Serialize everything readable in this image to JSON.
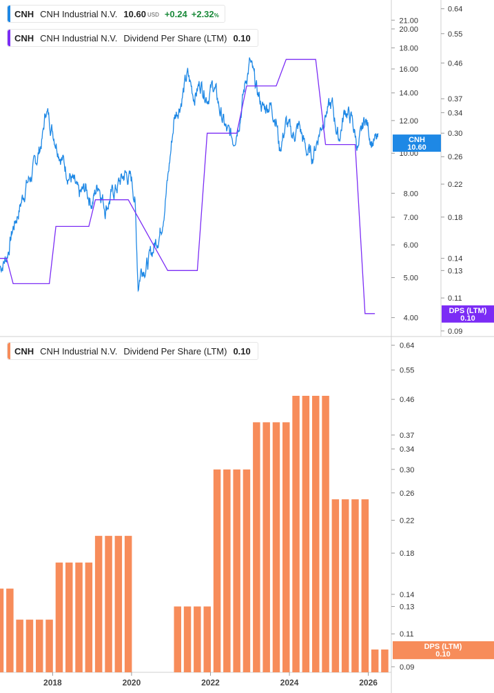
{
  "header": {
    "price_legend": {
      "ticker": "CNH",
      "company": "CNH Industrial N.V.",
      "price": "10.60",
      "currency": "USD",
      "change": "+0.24",
      "change_pct": "+2.32",
      "pct_sign": "%",
      "color": "#1e88e5"
    },
    "dps_legend": {
      "ticker": "CNH",
      "company": "CNH Industrial N.V.",
      "metric": "Dividend Per Share (LTM)",
      "value": "0.10",
      "color": "#7b2cf5"
    },
    "bar_legend": {
      "ticker": "CNH",
      "company": "CNH Industrial N.V.",
      "metric": "Dividend Per Share (LTM)",
      "value": "0.10",
      "color": "#f78c5a"
    }
  },
  "badges": {
    "price": {
      "label": "CNH",
      "value": "10.60",
      "color": "#1e88e5"
    },
    "dps": {
      "label": "DPS (LTM)",
      "value": "0.10",
      "color": "#7b2cf5"
    },
    "bar_dps": {
      "label": "DPS (LTM)",
      "value": "0.10",
      "color": "#f78c5a"
    }
  },
  "chart_data": [
    {
      "type": "line",
      "scale": "log",
      "grid": false,
      "x_range": [
        "2016-09",
        "2026-08"
      ],
      "x_ticks": [
        "2018",
        "2020",
        "2022",
        "2024",
        "2026"
      ],
      "series": [
        {
          "name": "CNH Industrial N.V.",
          "axis": "left",
          "color": "#1e88e5",
          "ylim": [
            3.6,
            23.5
          ],
          "y_ticks": [
            "4.00",
            "5.00",
            "6.00",
            "7.00",
            "8.00",
            "10.00",
            "12.00",
            "14.00",
            "16.00",
            "18.00",
            "20.00",
            "21.00"
          ],
          "points": [
            [
              "2016-09",
              5.3
            ],
            [
              "2016-11",
              5.6
            ],
            [
              "2017-01",
              6.6
            ],
            [
              "2017-03",
              7.4
            ],
            [
              "2017-05",
              8.4
            ],
            [
              "2017-07",
              9.0
            ],
            [
              "2017-09",
              10.2
            ],
            [
              "2017-10",
              11.0
            ],
            [
              "2017-11",
              12.8
            ],
            [
              "2018-01",
              11.4
            ],
            [
              "2018-03",
              10.2
            ],
            [
              "2018-05",
              9.2
            ],
            [
              "2018-07",
              8.6
            ],
            [
              "2018-09",
              7.8
            ],
            [
              "2018-11",
              8.2
            ],
            [
              "2019-01",
              7.6
            ],
            [
              "2019-03",
              8.5
            ],
            [
              "2019-05",
              7.4
            ],
            [
              "2019-07",
              7.9
            ],
            [
              "2019-09",
              8.4
            ],
            [
              "2019-11",
              8.9
            ],
            [
              "2020-01",
              8.6
            ],
            [
              "2020-02",
              7.8
            ],
            [
              "2020-03",
              4.8
            ],
            [
              "2020-04",
              5.3
            ],
            [
              "2020-06",
              5.4
            ],
            [
              "2020-08",
              6.0
            ],
            [
              "2020-10",
              6.6
            ],
            [
              "2020-12",
              8.6
            ],
            [
              "2021-02",
              12.2
            ],
            [
              "2021-04",
              13.4
            ],
            [
              "2021-06",
              15.4
            ],
            [
              "2021-08",
              13.8
            ],
            [
              "2021-10",
              14.8
            ],
            [
              "2021-12",
              13.8
            ],
            [
              "2022-02",
              14.6
            ],
            [
              "2022-04",
              12.6
            ],
            [
              "2022-06",
              11.2
            ],
            [
              "2022-08",
              10.8
            ],
            [
              "2022-10",
              12.4
            ],
            [
              "2022-12",
              15.4
            ],
            [
              "2023-01",
              16.6
            ],
            [
              "2023-03",
              14.2
            ],
            [
              "2023-05",
              12.8
            ],
            [
              "2023-07",
              13.2
            ],
            [
              "2023-09",
              12.2
            ],
            [
              "2023-10",
              10.2
            ],
            [
              "2023-12",
              11.8
            ],
            [
              "2024-02",
              11.0
            ],
            [
              "2024-04",
              11.6
            ],
            [
              "2024-06",
              10.2
            ],
            [
              "2024-08",
              9.8
            ],
            [
              "2024-10",
              11.2
            ],
            [
              "2024-12",
              12.6
            ],
            [
              "2025-02",
              13.0
            ],
            [
              "2025-04",
              10.8
            ],
            [
              "2025-06",
              12.8
            ],
            [
              "2025-08",
              12.0
            ],
            [
              "2025-10",
              10.2
            ],
            [
              "2025-12",
              12.2
            ],
            [
              "2026-02",
              10.8
            ],
            [
              "2026-04",
              10.6
            ]
          ]
        },
        {
          "name": "Dividend Per Share (LTM)",
          "axis": "right",
          "color": "#7b2cf5",
          "ylim": [
            0.087,
            0.675
          ],
          "y_ticks": [
            "0.09",
            "0.11",
            "0.13",
            "0.14",
            "0.18",
            "0.22",
            "0.26",
            "0.30",
            "0.34",
            "0.37",
            "0.46",
            "0.55",
            "0.64"
          ],
          "points": [
            [
              "2016-09",
              0.14
            ],
            [
              "2016-11",
              0.14
            ],
            [
              "2017-01",
              0.12
            ],
            [
              "2017-12",
              0.12
            ],
            [
              "2018-02",
              0.17
            ],
            [
              "2018-12",
              0.17
            ],
            [
              "2019-02",
              0.2
            ],
            [
              "2019-12",
              0.2
            ],
            [
              "2020-12",
              0.13
            ],
            [
              "2021-09",
              0.13
            ],
            [
              "2021-12",
              0.3
            ],
            [
              "2022-09",
              0.3
            ],
            [
              "2022-12",
              0.4
            ],
            [
              "2023-09",
              0.4
            ],
            [
              "2023-12",
              0.47
            ],
            [
              "2024-09",
              0.47
            ],
            [
              "2024-12",
              0.28
            ],
            [
              "2025-09",
              0.28
            ],
            [
              "2025-12",
              0.1
            ],
            [
              "2026-03",
              0.1
            ]
          ]
        }
      ]
    },
    {
      "type": "bar",
      "scale": "log",
      "grid": false,
      "x_range": [
        "2016-09",
        "2026-08"
      ],
      "x_ticks": [
        "2018",
        "2020",
        "2022",
        "2024",
        "2026"
      ],
      "ylim": [
        0.087,
        0.675
      ],
      "y_ticks": [
        "0.09",
        "0.11",
        "0.13",
        "0.14",
        "0.18",
        "0.22",
        "0.26",
        "0.30",
        "0.34",
        "0.37",
        "0.46",
        "0.55",
        "0.64"
      ],
      "series": [
        {
          "name": "Dividend Per Share (LTM)",
          "color": "#f78c5a",
          "points": [
            [
              "2016-09",
              0.145
            ],
            [
              "2016-12",
              0.145
            ],
            [
              "2017-03",
              0.12
            ],
            [
              "2017-06",
              0.12
            ],
            [
              "2017-09",
              0.12
            ],
            [
              "2017-12",
              0.12
            ],
            [
              "2018-03",
              0.17
            ],
            [
              "2018-06",
              0.17
            ],
            [
              "2018-09",
              0.17
            ],
            [
              "2018-12",
              0.17
            ],
            [
              "2019-03",
              0.2
            ],
            [
              "2019-06",
              0.2
            ],
            [
              "2019-09",
              0.2
            ],
            [
              "2019-12",
              0.2
            ],
            [
              "2021-03",
              0.13
            ],
            [
              "2021-06",
              0.13
            ],
            [
              "2021-09",
              0.13
            ],
            [
              "2021-12",
              0.13
            ],
            [
              "2022-03",
              0.3
            ],
            [
              "2022-06",
              0.3
            ],
            [
              "2022-09",
              0.3
            ],
            [
              "2022-12",
              0.3
            ],
            [
              "2023-03",
              0.4
            ],
            [
              "2023-06",
              0.4
            ],
            [
              "2023-09",
              0.4
            ],
            [
              "2023-12",
              0.4
            ],
            [
              "2024-03",
              0.47
            ],
            [
              "2024-06",
              0.47
            ],
            [
              "2024-09",
              0.47
            ],
            [
              "2024-12",
              0.47
            ],
            [
              "2025-03",
              0.25
            ],
            [
              "2025-06",
              0.25
            ],
            [
              "2025-09",
              0.25
            ],
            [
              "2025-12",
              0.25
            ],
            [
              "2026-03",
              0.1
            ],
            [
              "2026-06",
              0.1
            ]
          ]
        }
      ]
    }
  ]
}
